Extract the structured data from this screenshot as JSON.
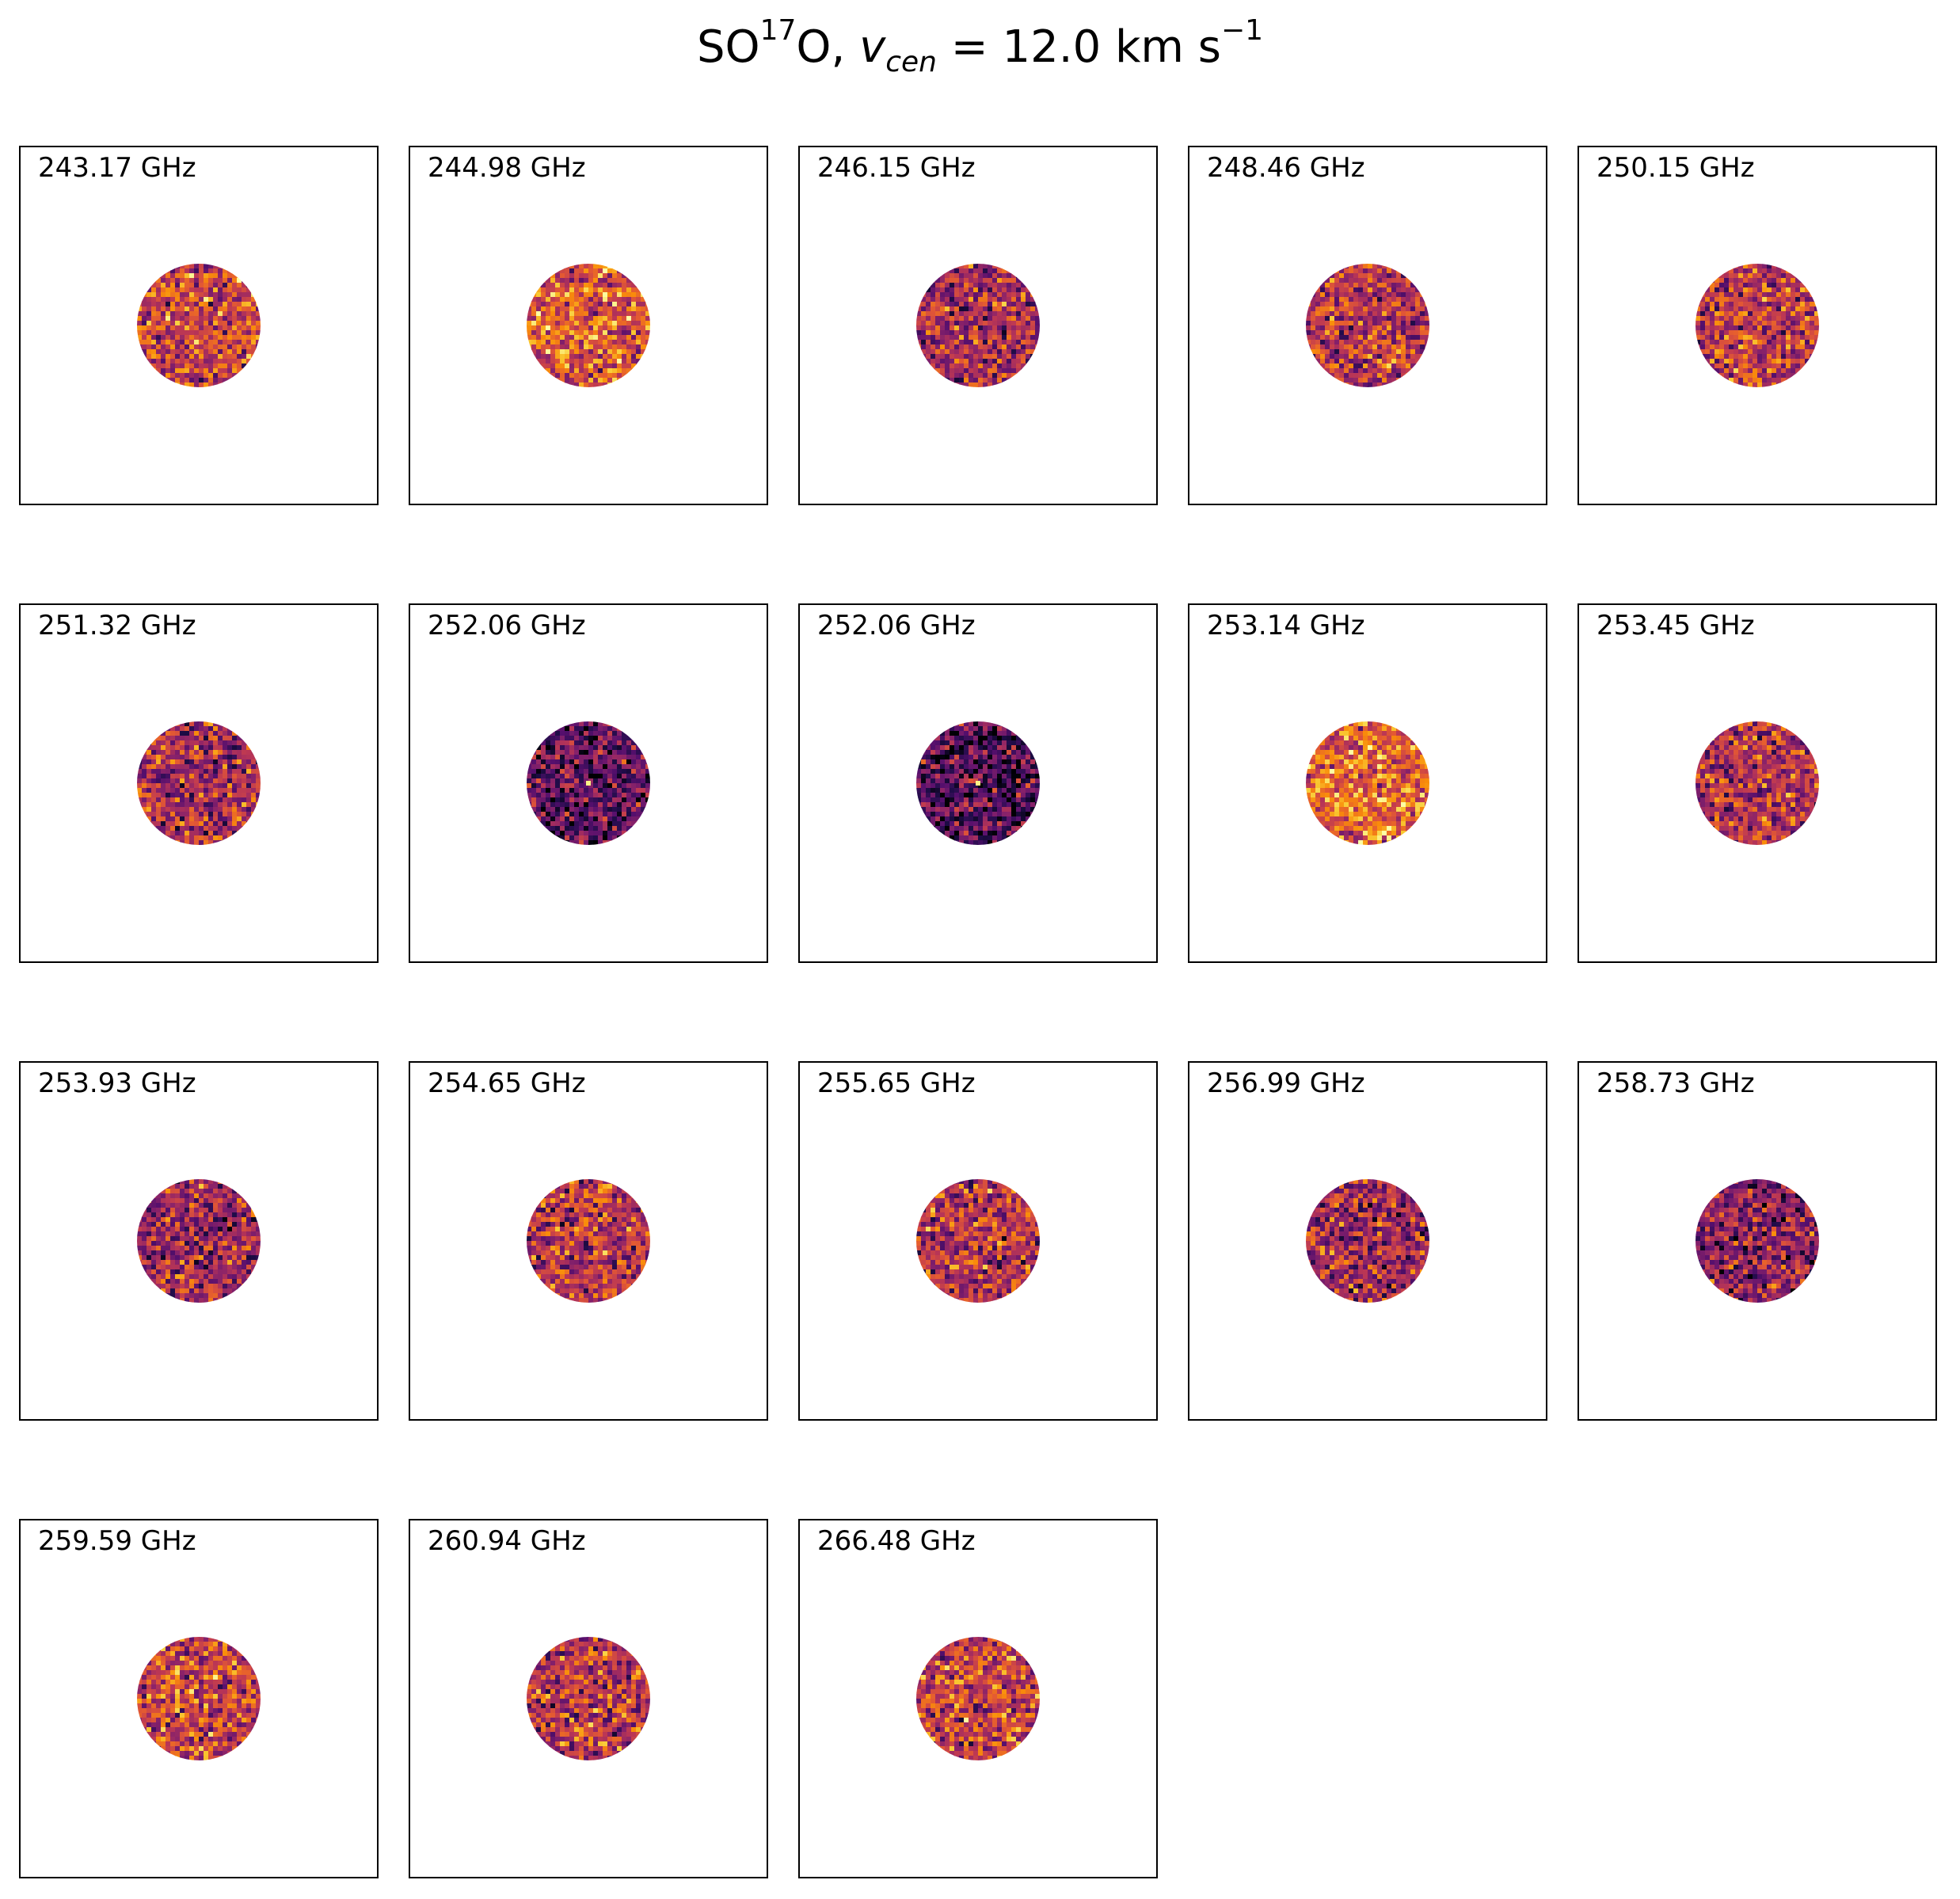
{
  "title": {
    "species_prefix": "SO",
    "species_superscript": "17",
    "species_suffix": "O, ",
    "velocity_symbol": "v",
    "velocity_subscript": "cen",
    "velocity_equals": " =  12.0 km s",
    "velocity_unit_exponent": "−1"
  },
  "colors": {
    "colormap": "inferno",
    "panel_border": "#000000",
    "background": "#ffffff"
  },
  "chart_data": {
    "type": "heatmap",
    "layout": "channel-map grid, 5 columns x 4 rows, 18 panels",
    "colormap": "inferno",
    "axes_ticks": "none",
    "v_cen_km_s": 12.0,
    "panels": [
      {
        "label": "243.17 GHz",
        "frequency_ghz": 243.17,
        "mean_level": 0.55,
        "central_peak": false
      },
      {
        "label": "244.98 GHz",
        "frequency_ghz": 244.98,
        "mean_level": 0.62,
        "central_peak": false
      },
      {
        "label": "246.15 GHz",
        "frequency_ghz": 246.15,
        "mean_level": 0.45,
        "central_peak": false
      },
      {
        "label": "248.46 GHz",
        "frequency_ghz": 248.46,
        "mean_level": 0.5,
        "central_peak": false
      },
      {
        "label": "250.15 GHz",
        "frequency_ghz": 250.15,
        "mean_level": 0.52,
        "central_peak": false
      },
      {
        "label": "251.32 GHz",
        "frequency_ghz": 251.32,
        "mean_level": 0.45,
        "central_peak": false
      },
      {
        "label": "252.06 GHz",
        "frequency_ghz": 252.06,
        "mean_level": 0.28,
        "central_peak": true
      },
      {
        "label": "252.06 GHz",
        "frequency_ghz": 252.06,
        "mean_level": 0.24,
        "central_peak": true
      },
      {
        "label": "253.14 GHz",
        "frequency_ghz": 253.14,
        "mean_level": 0.65,
        "central_peak": false
      },
      {
        "label": "253.45 GHz",
        "frequency_ghz": 253.45,
        "mean_level": 0.48,
        "central_peak": false
      },
      {
        "label": "253.93 GHz",
        "frequency_ghz": 253.93,
        "mean_level": 0.45,
        "central_peak": false
      },
      {
        "label": "254.65 GHz",
        "frequency_ghz": 254.65,
        "mean_level": 0.5,
        "central_peak": false
      },
      {
        "label": "255.65 GHz",
        "frequency_ghz": 255.65,
        "mean_level": 0.48,
        "central_peak": false
      },
      {
        "label": "256.99 GHz",
        "frequency_ghz": 256.99,
        "mean_level": 0.44,
        "central_peak": false
      },
      {
        "label": "258.73 GHz",
        "frequency_ghz": 258.73,
        "mean_level": 0.38,
        "central_peak": false
      },
      {
        "label": "259.59 GHz",
        "frequency_ghz": 259.59,
        "mean_level": 0.56,
        "central_peak": false
      },
      {
        "label": "260.94 GHz",
        "frequency_ghz": 260.94,
        "mean_level": 0.5,
        "central_peak": false
      },
      {
        "label": "266.48 GHz",
        "frequency_ghz": 266.48,
        "mean_level": 0.55,
        "central_peak": false
      }
    ]
  }
}
